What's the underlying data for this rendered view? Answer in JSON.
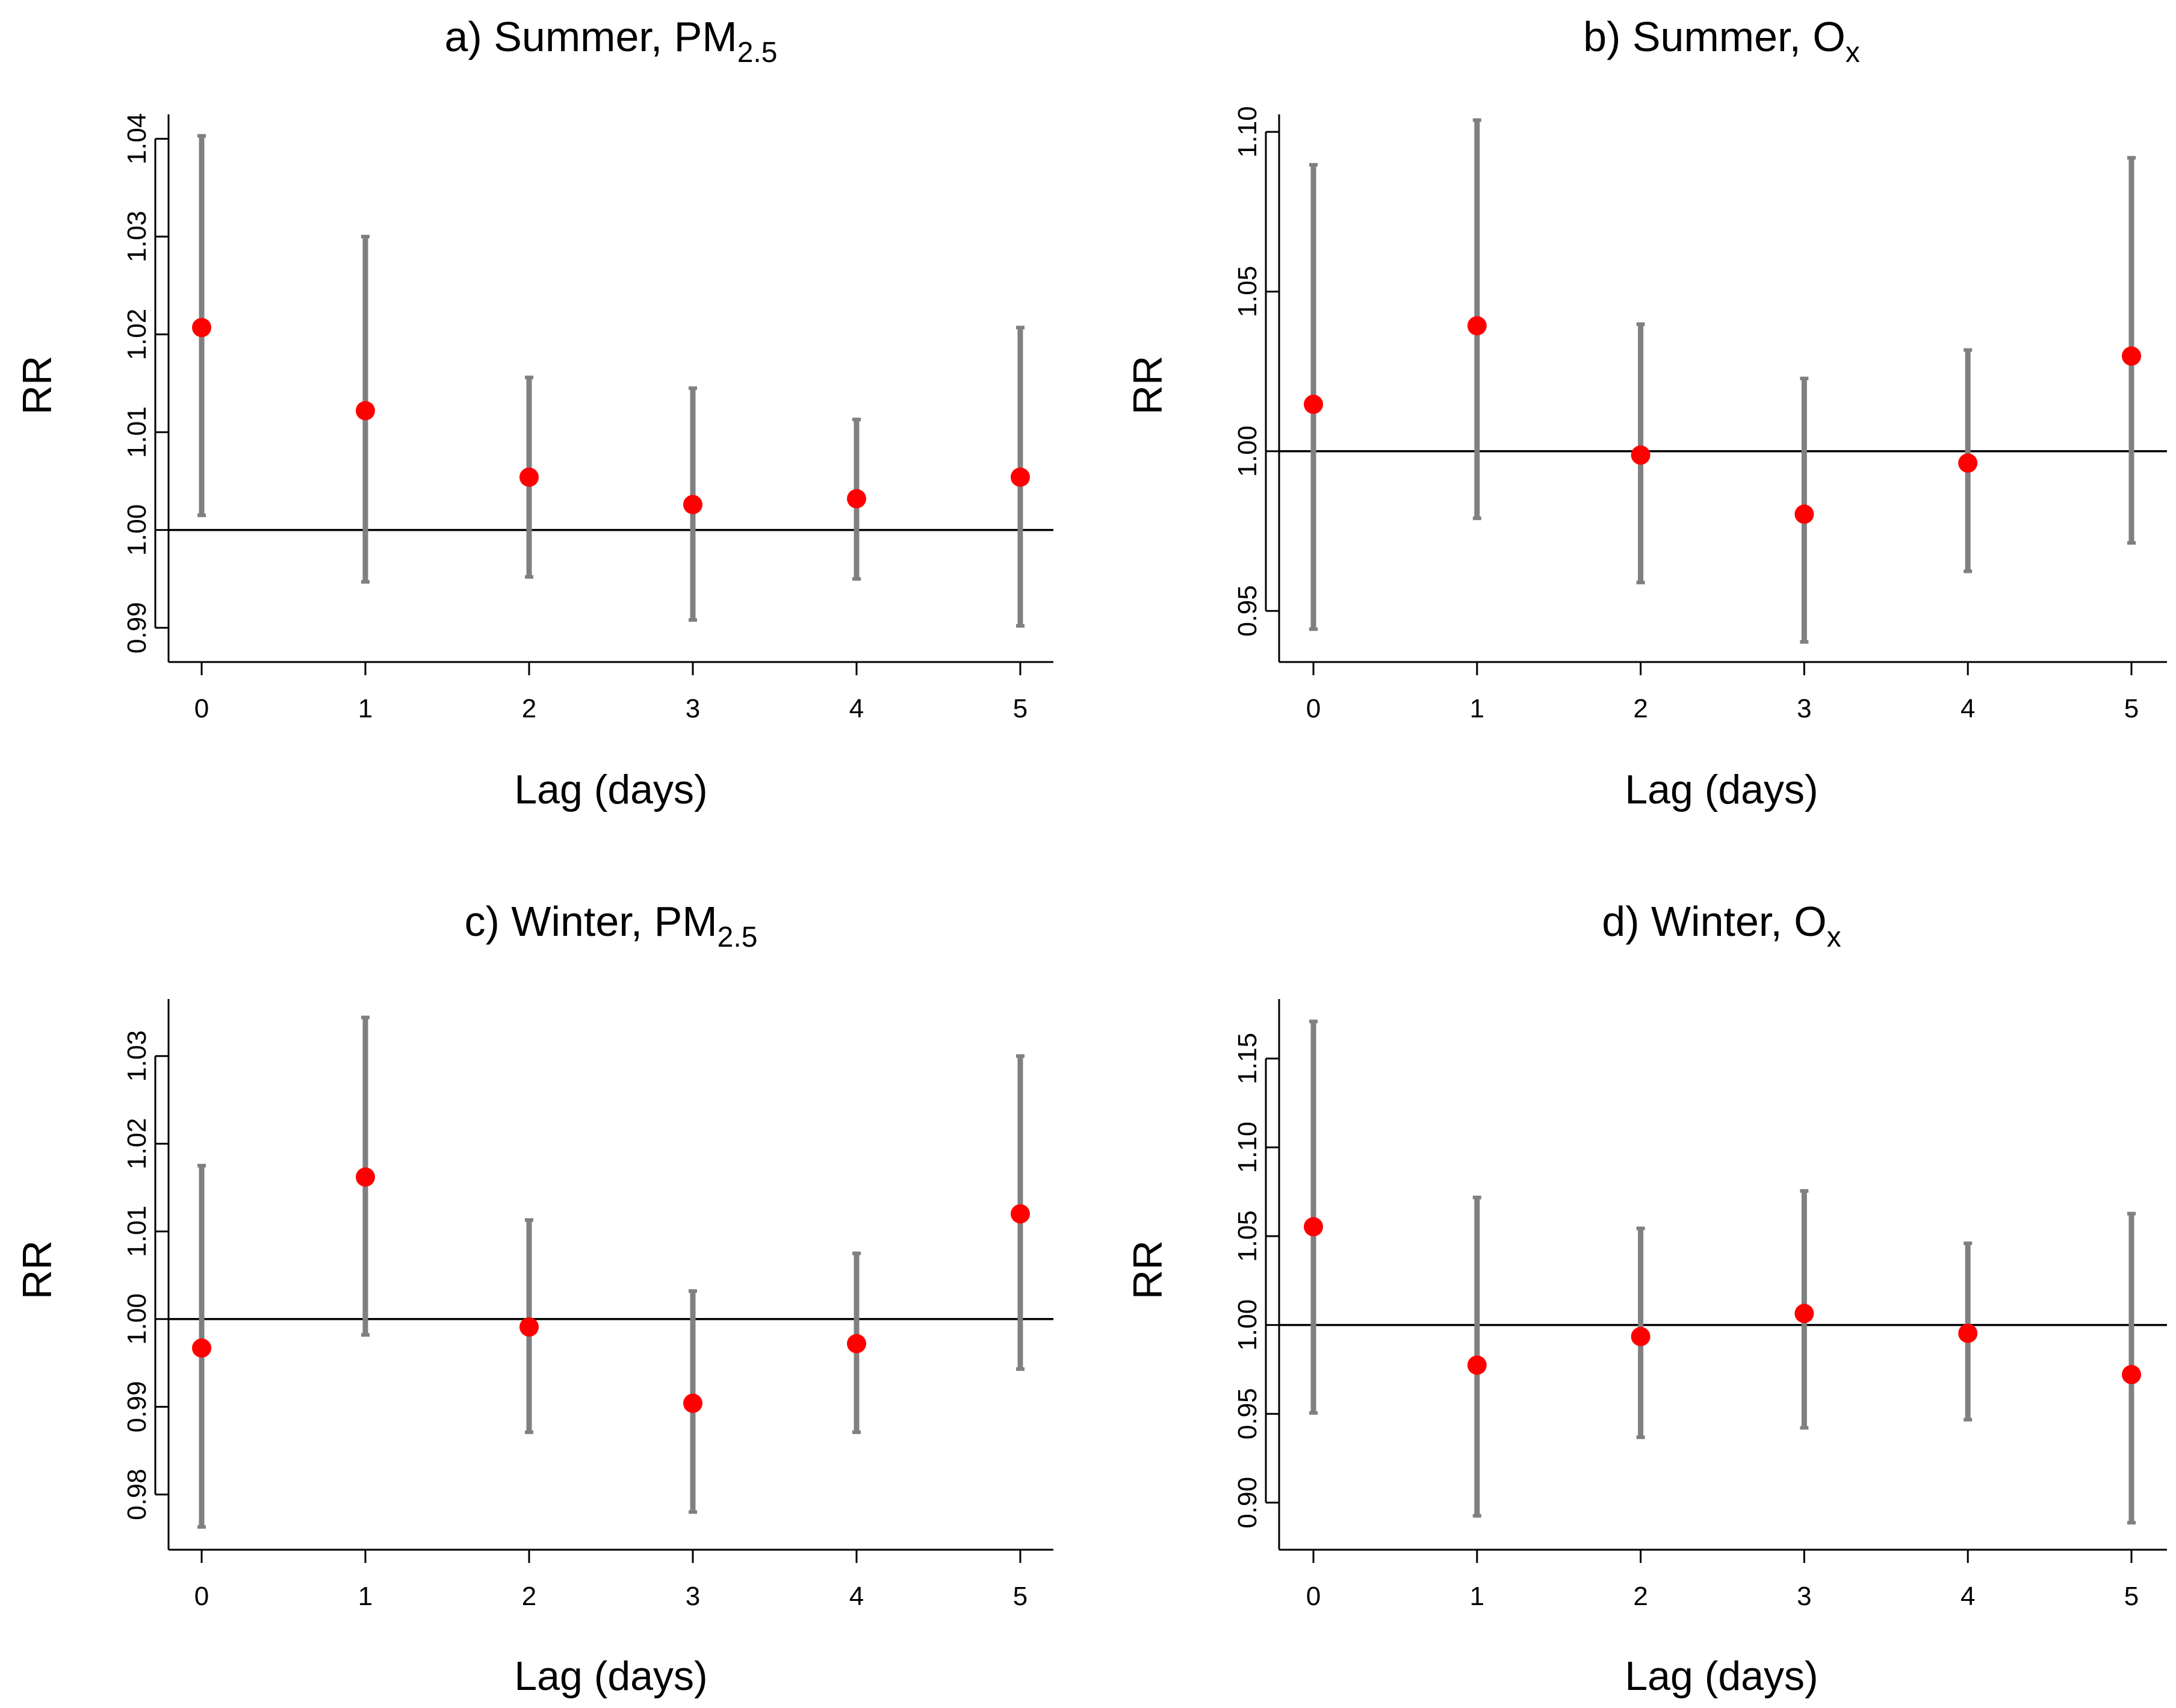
{
  "chart_data": [
    {
      "type": "errorbar",
      "id": "a",
      "title": {
        "prefix": "a) Summer, ",
        "pollutant": "PM",
        "subscript": "2.5"
      },
      "xlabel": "Lag (days)",
      "ylabel": "RR",
      "x": [
        0,
        1,
        2,
        3,
        4,
        5
      ],
      "x_tick_labels": [
        "0",
        "1",
        "2",
        "3",
        "4",
        "5"
      ],
      "ylim": [
        0.9865,
        1.0425
      ],
      "y_ticks": [
        0.99,
        1.0,
        1.01,
        1.02,
        1.03,
        1.04
      ],
      "y_tick_labels": [
        "0.99",
        "1.00",
        "1.01",
        "1.02",
        "1.03",
        "1.04"
      ],
      "reference_line": 1.0,
      "estimate": [
        1.0207,
        1.0122,
        1.0054,
        1.0026,
        1.0032,
        1.0054
      ],
      "lower": [
        1.0015,
        0.9947,
        0.9952,
        0.9908,
        0.995,
        0.9902
      ],
      "upper": [
        1.0403,
        1.03,
        1.0156,
        1.0145,
        1.0113,
        1.0207
      ]
    },
    {
      "type": "errorbar",
      "id": "b",
      "title": {
        "prefix": "b) Summer, ",
        "pollutant": "O",
        "subscript": "x"
      },
      "xlabel": "Lag (days)",
      "ylabel": "RR",
      "x": [
        0,
        1,
        2,
        3,
        4,
        5
      ],
      "x_tick_labels": [
        "0",
        "1",
        "2",
        "3",
        "4",
        "5"
      ],
      "ylim": [
        0.934,
        1.1055
      ],
      "y_ticks": [
        0.95,
        1.0,
        1.05,
        1.1
      ],
      "y_tick_labels": [
        "0.95",
        "1.00",
        "1.05",
        "1.10"
      ],
      "reference_line": 1.0,
      "estimate": [
        1.0147,
        1.0393,
        0.9988,
        0.9803,
        0.9963,
        1.0298
      ],
      "lower": [
        0.9443,
        0.979,
        0.9589,
        0.9403,
        0.9624,
        0.9713
      ],
      "upper": [
        1.0897,
        1.1037,
        1.0398,
        1.0228,
        1.0317,
        1.0919
      ]
    },
    {
      "type": "errorbar",
      "id": "c",
      "title": {
        "prefix": "c) Winter, ",
        "pollutant": "PM",
        "subscript": "2.5"
      },
      "xlabel": "Lag (days)",
      "ylabel": "RR",
      "x": [
        0,
        1,
        2,
        3,
        4,
        5
      ],
      "x_tick_labels": [
        "0",
        "1",
        "2",
        "3",
        "4",
        "5"
      ],
      "ylim": [
        0.9737,
        1.0365
      ],
      "y_ticks": [
        0.98,
        0.99,
        1.0,
        1.01,
        1.02,
        1.03
      ],
      "y_tick_labels": [
        "0.98",
        "0.99",
        "1.00",
        "1.01",
        "1.02",
        "1.03"
      ],
      "reference_line": 1.0,
      "estimate": [
        0.9967,
        1.0162,
        0.9991,
        0.9904,
        0.9972,
        1.012
      ],
      "lower": [
        0.9763,
        0.9982,
        0.9871,
        0.978,
        0.9871,
        0.9943
      ],
      "upper": [
        1.0175,
        1.0344,
        1.0113,
        1.0032,
        1.0075,
        1.03
      ]
    },
    {
      "type": "errorbar",
      "id": "d",
      "title": {
        "prefix": "d) Winter, ",
        "pollutant": "O",
        "subscript": "x"
      },
      "xlabel": "Lag (days)",
      "ylabel": "RR",
      "x": [
        0,
        1,
        2,
        3,
        4,
        5
      ],
      "x_tick_labels": [
        "0",
        "1",
        "2",
        "3",
        "4",
        "5"
      ],
      "ylim": [
        0.8735,
        1.1835
      ],
      "y_ticks": [
        0.9,
        0.95,
        1.0,
        1.05,
        1.1,
        1.15
      ],
      "y_tick_labels": [
        "0.90",
        "0.95",
        "1.00",
        "1.05",
        "1.10",
        "1.15"
      ],
      "reference_line": 1.0,
      "estimate": [
        1.0553,
        0.9774,
        0.9935,
        1.0065,
        0.9953,
        0.9721
      ],
      "lower": [
        0.9505,
        0.8926,
        0.9368,
        0.9421,
        0.9467,
        0.8887
      ],
      "upper": [
        1.1709,
        1.0718,
        1.0544,
        1.0755,
        1.046,
        1.0627
      ]
    }
  ]
}
